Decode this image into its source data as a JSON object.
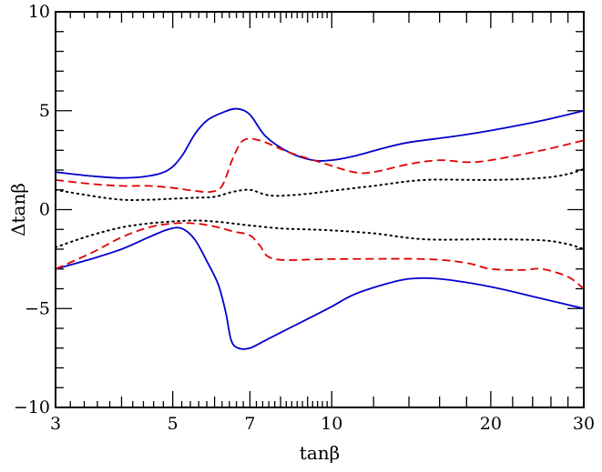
{
  "chart_data": {
    "type": "line",
    "xlabel": "tanβ",
    "ylabel": "Δtanβ",
    "x_scale": "log",
    "xlim": [
      3,
      30
    ],
    "ylim": [
      -10,
      10
    ],
    "x_tick_labels": [
      {
        "value": 3,
        "label": "3"
      },
      {
        "value": 5,
        "label": "5"
      },
      {
        "value": 7,
        "label": "7"
      },
      {
        "value": 10,
        "label": "10"
      },
      {
        "value": 20,
        "label": "20"
      },
      {
        "value": 30,
        "label": "30"
      }
    ],
    "y_tick_labels": [
      {
        "value": 10,
        "label": "10"
      },
      {
        "value": 5,
        "label": "5"
      },
      {
        "value": 0,
        "label": "0"
      },
      {
        "value": -5,
        "label": "−5"
      },
      {
        "value": -10,
        "label": "−10"
      }
    ],
    "grid": false,
    "series": [
      {
        "style": "solid",
        "color": "#0000cc",
        "points": [
          [
            3,
            1.9
          ],
          [
            3.5,
            1.7
          ],
          [
            4,
            1.6
          ],
          [
            4.5,
            1.7
          ],
          [
            4.9,
            2.0
          ],
          [
            5.2,
            2.7
          ],
          [
            5.5,
            3.8
          ],
          [
            5.8,
            4.5
          ],
          [
            6.2,
            4.9
          ],
          [
            6.6,
            5.1
          ],
          [
            7,
            4.8
          ],
          [
            7.5,
            3.7
          ],
          [
            8.3,
            2.9
          ],
          [
            9.2,
            2.5
          ],
          [
            10,
            2.5
          ],
          [
            11,
            2.7
          ],
          [
            12.5,
            3.1
          ],
          [
            14,
            3.4
          ],
          [
            17,
            3.7
          ],
          [
            20,
            4.0
          ],
          [
            25,
            4.5
          ],
          [
            30,
            5.0
          ]
        ]
      },
      {
        "style": "solid",
        "color": "#0000cc",
        "points": [
          [
            3,
            -3.0
          ],
          [
            3.5,
            -2.5
          ],
          [
            4,
            -2.0
          ],
          [
            4.5,
            -1.4
          ],
          [
            4.9,
            -1.0
          ],
          [
            5.2,
            -0.95
          ],
          [
            5.5,
            -1.5
          ],
          [
            5.8,
            -2.6
          ],
          [
            6.1,
            -3.8
          ],
          [
            6.3,
            -5.2
          ],
          [
            6.45,
            -6.6
          ],
          [
            6.65,
            -7.0
          ],
          [
            7,
            -7.0
          ],
          [
            7.5,
            -6.6
          ],
          [
            8.3,
            -6.0
          ],
          [
            9.2,
            -5.4
          ],
          [
            10,
            -4.9
          ],
          [
            11,
            -4.3
          ],
          [
            12.5,
            -3.8
          ],
          [
            14,
            -3.5
          ],
          [
            16,
            -3.5
          ],
          [
            20,
            -3.9
          ],
          [
            25,
            -4.5
          ],
          [
            30,
            -5.0
          ]
        ]
      },
      {
        "style": "dashed",
        "color": "#e00000",
        "points": [
          [
            3,
            1.5
          ],
          [
            3.5,
            1.3
          ],
          [
            4,
            1.2
          ],
          [
            4.5,
            1.2
          ],
          [
            5,
            1.1
          ],
          [
            5.5,
            0.95
          ],
          [
            5.9,
            0.9
          ],
          [
            6.2,
            1.2
          ],
          [
            6.5,
            2.6
          ],
          [
            6.8,
            3.5
          ],
          [
            7.3,
            3.5
          ],
          [
            8.3,
            2.9
          ],
          [
            9.5,
            2.4
          ],
          [
            11,
            1.9
          ],
          [
            12,
            1.9
          ],
          [
            14,
            2.3
          ],
          [
            16,
            2.5
          ],
          [
            18,
            2.4
          ],
          [
            20,
            2.5
          ],
          [
            25,
            3.0
          ],
          [
            30,
            3.5
          ]
        ]
      },
      {
        "style": "dashed",
        "color": "#e00000",
        "points": [
          [
            3,
            -3.0
          ],
          [
            3.5,
            -2.2
          ],
          [
            4,
            -1.4
          ],
          [
            4.5,
            -0.9
          ],
          [
            5,
            -0.7
          ],
          [
            5.5,
            -0.7
          ],
          [
            6,
            -0.85
          ],
          [
            6.5,
            -1.1
          ],
          [
            7,
            -1.3
          ],
          [
            7.3,
            -1.8
          ],
          [
            7.8,
            -2.5
          ],
          [
            10,
            -2.5
          ],
          [
            15,
            -2.5
          ],
          [
            18,
            -2.7
          ],
          [
            20,
            -3.0
          ],
          [
            23,
            -3.05
          ],
          [
            25,
            -3.0
          ],
          [
            28,
            -3.4
          ],
          [
            30,
            -4.0
          ]
        ]
      },
      {
        "style": "dotted",
        "color": "#000000",
        "points": [
          [
            3,
            1.0
          ],
          [
            3.5,
            0.7
          ],
          [
            4,
            0.5
          ],
          [
            4.5,
            0.5
          ],
          [
            5,
            0.55
          ],
          [
            5.5,
            0.6
          ],
          [
            6,
            0.65
          ],
          [
            6.5,
            0.9
          ],
          [
            7,
            1.0
          ],
          [
            7.5,
            0.75
          ],
          [
            8,
            0.7
          ],
          [
            9,
            0.8
          ],
          [
            10,
            0.95
          ],
          [
            12,
            1.2
          ],
          [
            15,
            1.5
          ],
          [
            20,
            1.5
          ],
          [
            25,
            1.6
          ],
          [
            28,
            1.8
          ],
          [
            30,
            2.05
          ]
        ]
      },
      {
        "style": "dotted",
        "color": "#000000",
        "points": [
          [
            3,
            -1.9
          ],
          [
            3.5,
            -1.3
          ],
          [
            4,
            -0.9
          ],
          [
            4.5,
            -0.7
          ],
          [
            5,
            -0.6
          ],
          [
            5.5,
            -0.55
          ],
          [
            6,
            -0.6
          ],
          [
            6.5,
            -0.7
          ],
          [
            7,
            -0.8
          ],
          [
            8,
            -0.95
          ],
          [
            9,
            -1.0
          ],
          [
            10,
            -1.05
          ],
          [
            12,
            -1.2
          ],
          [
            15,
            -1.5
          ],
          [
            20,
            -1.5
          ],
          [
            25,
            -1.55
          ],
          [
            28,
            -1.75
          ],
          [
            30,
            -2.0
          ]
        ]
      }
    ]
  }
}
